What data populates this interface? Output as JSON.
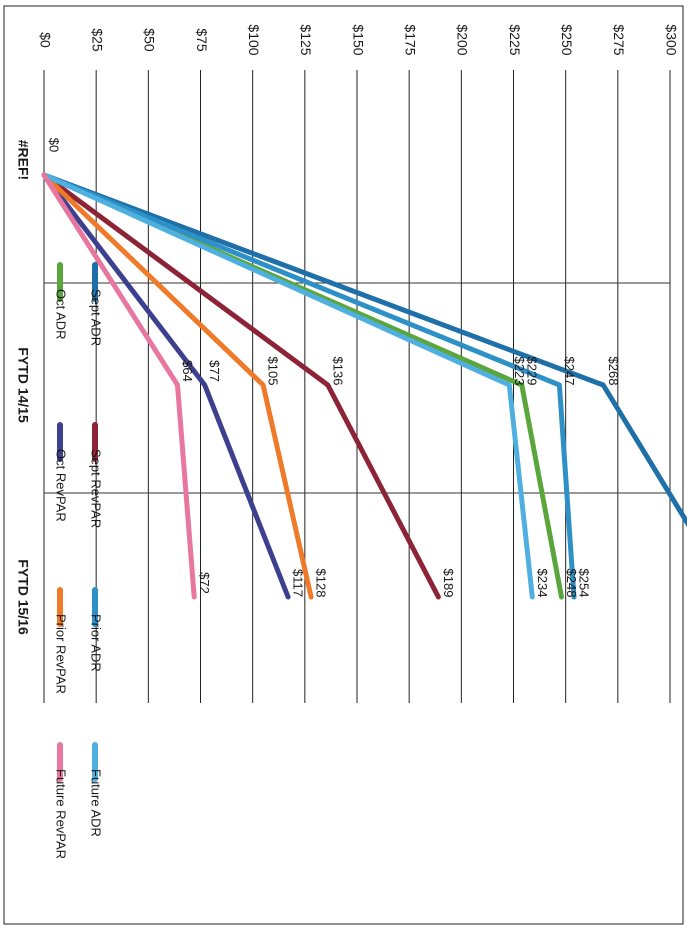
{
  "chart_data": {
    "type": "line",
    "title": "",
    "xlabel": "",
    "ylabel": "",
    "orientation": "rotated-90-clockwise",
    "categories": [
      "#REF!",
      "FYTD 14/15",
      "FYTD 15/16"
    ],
    "ylim": [
      0,
      300
    ],
    "ytick_step": 25,
    "ytick_labels": [
      "$0",
      "$25",
      "$50",
      "$75",
      "$100",
      "$125",
      "$150",
      "$175",
      "$200",
      "$225",
      "$250",
      "$275",
      "$300"
    ],
    "grid": true,
    "legend_placement": "bottom",
    "series": [
      {
        "name": "Sept ADR",
        "color": "#1f6fa8",
        "values": [
          0,
          268,
          330
        ],
        "labels": [
          "$0",
          "$268",
          ""
        ]
      },
      {
        "name": "Oct ADR",
        "color": "#5aa63c",
        "values": [
          0,
          229,
          248
        ],
        "labels": [
          "",
          "$229",
          "$248"
        ]
      },
      {
        "name": "Sept RevPAR",
        "color": "#8c2336",
        "values": [
          0,
          136,
          189
        ],
        "labels": [
          "",
          "$136",
          "$189"
        ]
      },
      {
        "name": "Oct RevPAR",
        "color": "#3d3f8f",
        "values": [
          0,
          77,
          117
        ],
        "labels": [
          "",
          "$77",
          "$117"
        ]
      },
      {
        "name": "Prior ADR",
        "color": "#2d90c6",
        "values": [
          0,
          247,
          254
        ],
        "labels": [
          "",
          "$247",
          "$254"
        ]
      },
      {
        "name": "Prior RevPAR",
        "color": "#ee7a2a",
        "values": [
          0,
          105,
          128
        ],
        "labels": [
          "",
          "$105",
          "$128"
        ]
      },
      {
        "name": "Future ADR",
        "color": "#4fb0df",
        "values": [
          0,
          223,
          234
        ],
        "labels": [
          "",
          "$223",
          "$234"
        ]
      },
      {
        "name": "Future RevPAR",
        "color": "#e877a0",
        "values": [
          0,
          64,
          72
        ],
        "labels": [
          "",
          "$64",
          "$72"
        ]
      }
    ]
  }
}
